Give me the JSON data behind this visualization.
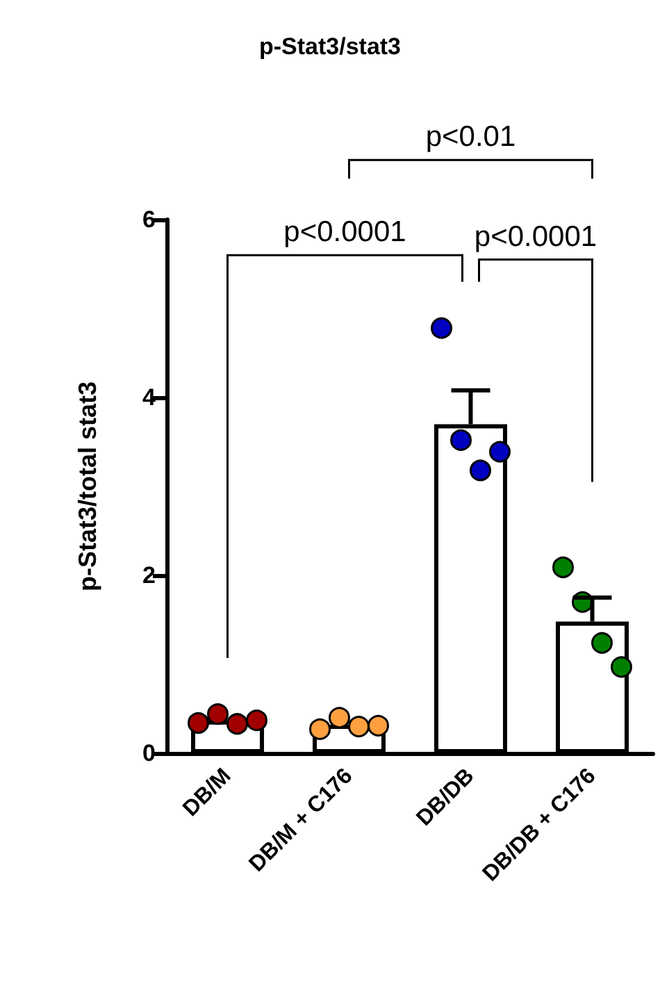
{
  "chart_data": {
    "type": "bar",
    "title": "p-Stat3/stat3",
    "ylabel": "p-Stat3/total stat3",
    "categories": [
      "DB/M",
      "DB/M + C176",
      "DB/DB",
      "DB/DB + C176"
    ],
    "series": [
      {
        "color": "#ffffff",
        "values": [
          0.37,
          0.32,
          3.7,
          1.48
        ],
        "errors": [
          null,
          null,
          0.38,
          0.27
        ]
      },
      {
        "type": "scatter",
        "color": "#a00000",
        "x": [
          "DB/M",
          "DB/M",
          "DB/M",
          "DB/M"
        ],
        "values": [
          0.34,
          0.44,
          0.33,
          0.37
        ]
      },
      {
        "type": "scatter",
        "color": "#ffa040",
        "x": [
          "DB/M + C176",
          "DB/M + C176",
          "DB/M + C176",
          "DB/M + C176"
        ],
        "values": [
          0.27,
          0.4,
          0.3,
          0.31
        ]
      },
      {
        "type": "scatter",
        "color": "#0000c0",
        "x": [
          "DB/DB",
          "DB/DB",
          "DB/DB",
          "DB/DB"
        ],
        "values": [
          4.78,
          3.52,
          3.18,
          3.39
        ]
      },
      {
        "type": "scatter",
        "color": "#008000",
        "x": [
          "DB/DB + C176",
          "DB/DB + C176",
          "DB/DB + C176",
          "DB/DB + C176"
        ],
        "values": [
          2.09,
          1.7,
          1.24,
          0.97
        ]
      }
    ],
    "ylim": [
      0,
      6
    ],
    "yticks": [
      0,
      2,
      4,
      6
    ],
    "grid": false,
    "marker": "circle",
    "annotations": [
      "p<0.0001",
      "p<0.0001",
      "p<0.01"
    ]
  }
}
